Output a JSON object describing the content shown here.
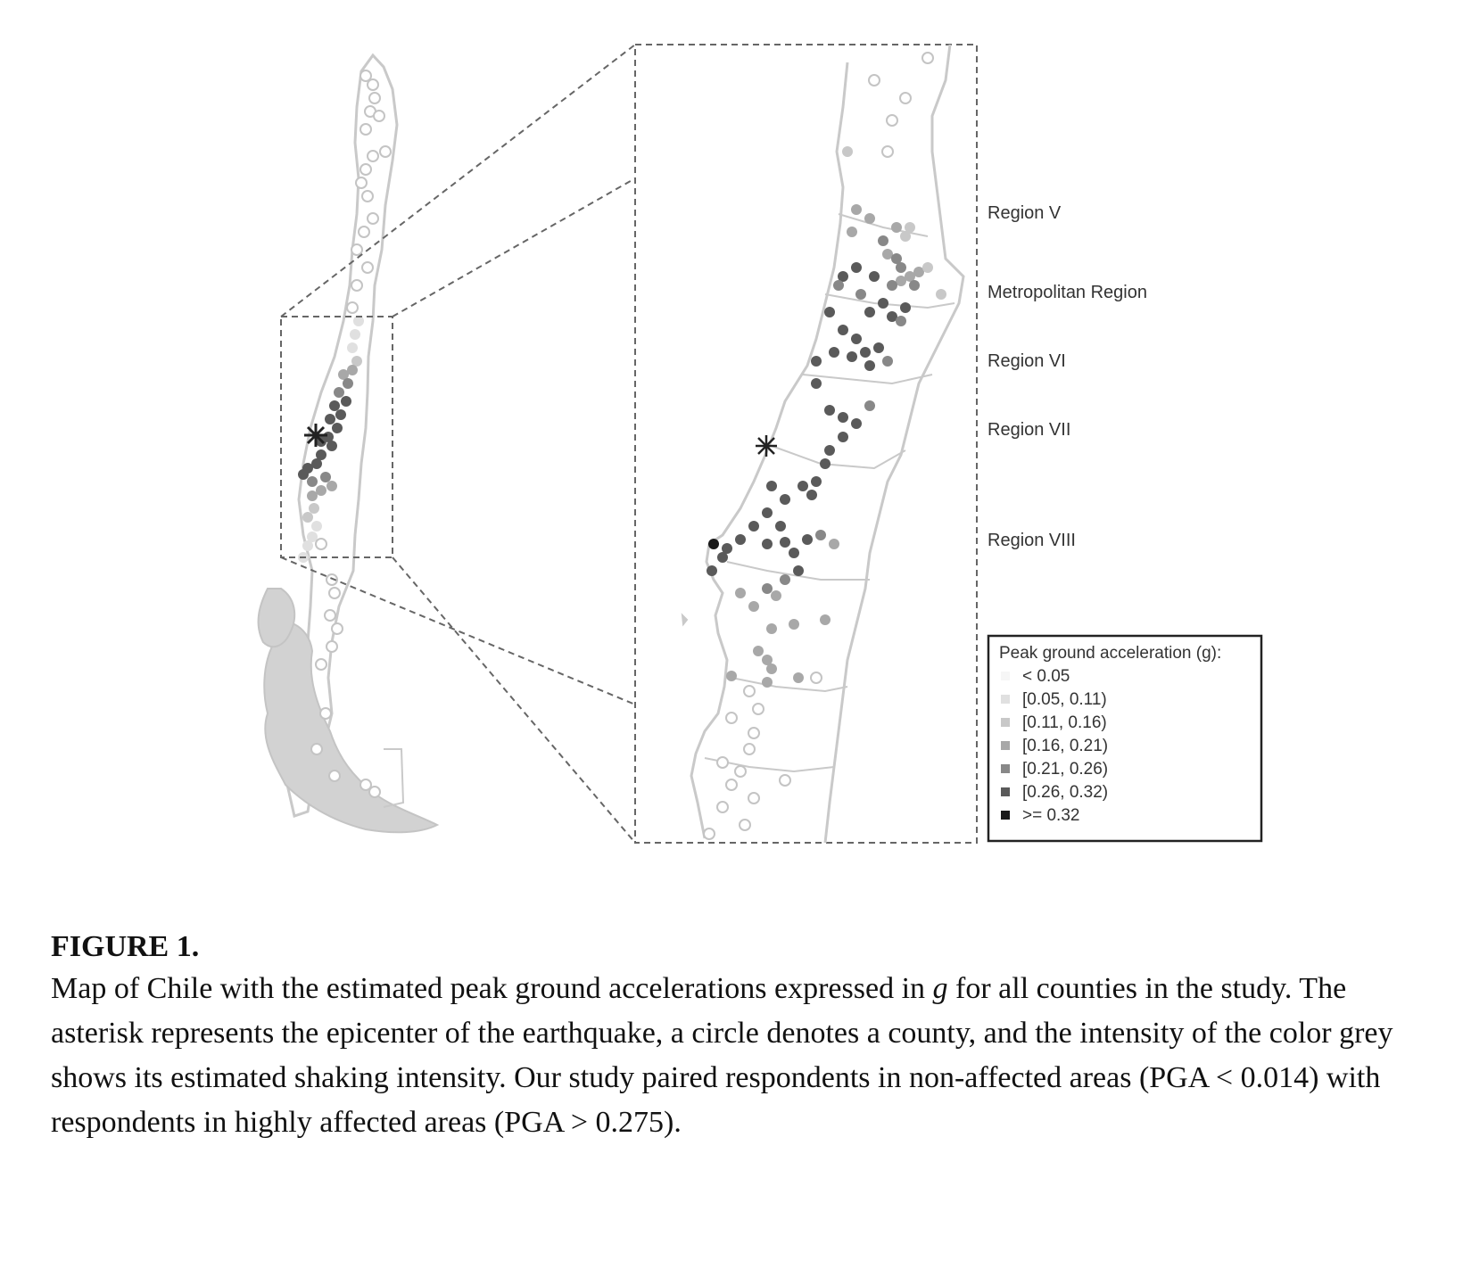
{
  "regions": [
    {
      "key": "v",
      "label": "Region V"
    },
    {
      "key": "metro",
      "label": "Metropolitan Region"
    },
    {
      "key": "vi",
      "label": "Region VI"
    },
    {
      "key": "vii",
      "label": "Region VII"
    },
    {
      "key": "viii",
      "label": "Region VIII"
    }
  ],
  "legend": {
    "title": "Peak ground acceleration (g):",
    "classes": [
      {
        "label": "< 0.05",
        "color": "#f6f6f6"
      },
      {
        "label": "[0.05, 0.11)",
        "color": "#e0e0e0"
      },
      {
        "label": "[0.11, 0.16)",
        "color": "#c8c8c8"
      },
      {
        "label": "[0.16, 0.21)",
        "color": "#a8a8a8"
      },
      {
        "label": "[0.21, 0.26)",
        "color": "#888888"
      },
      {
        "label": "[0.26, 0.32)",
        "color": "#5a5a5a"
      },
      {
        "label": ">= 0.32",
        "color": "#1a1a1a"
      }
    ]
  },
  "caption": {
    "label": "FIGURE 1.",
    "text_before_g": "Map of Chile with the estimated peak ground accelerations expressed in ",
    "g": "g",
    "text_after_g": " for all counties in the study. The asterisk represents the epicenter of the earthquake, a circle denotes a county, and the intensity of the color grey shows its estimated shaking intensity. Our study paired respondents in non-affected areas (PGA < 0.014) with respondents in highly affected areas (PGA > 0.275)."
  },
  "colors": {
    "coastline": "#c9c9c9",
    "dashed_box": "#666666",
    "epicenter": "#222222"
  }
}
